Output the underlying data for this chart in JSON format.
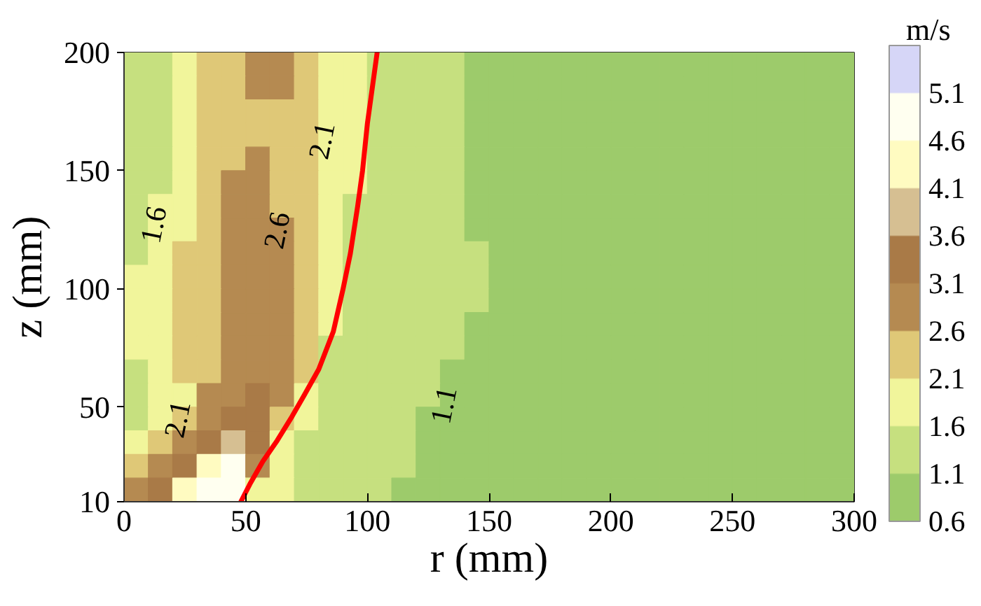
{
  "chart_data": {
    "type": "scatter",
    "marker": "square",
    "xlabel": "r (mm)",
    "ylabel": "z (mm)",
    "clabel": "m/s",
    "x": [
      5,
      15,
      25,
      35,
      45,
      55,
      65,
      75,
      85,
      95,
      105,
      115,
      125,
      135,
      145,
      155,
      165,
      175,
      185,
      195,
      205,
      215,
      225,
      235,
      245,
      255,
      265,
      275,
      285,
      295
    ],
    "series": [
      {
        "values": [
          195,
          195,
          195,
          195,
          195,
          195,
          195,
          195,
          195,
          195,
          195,
          195,
          195,
          195,
          195,
          195,
          195,
          195,
          195,
          195,
          195,
          195,
          195,
          195,
          195,
          195,
          195,
          195,
          195,
          195
        ],
        "cvalues": [
          1.35,
          1.35,
          1.85,
          2.35,
          2.35,
          2.85,
          2.85,
          2.35,
          1.85,
          1.85,
          1.35,
          1.35,
          1.35,
          1.35,
          0.85,
          0.85,
          0.85,
          0.85,
          0.85,
          0.85,
          0.85,
          0.85,
          0.85,
          0.85,
          0.85,
          0.85,
          0.85,
          0.85,
          0.85,
          0.85
        ],
        "colors": [
          "#c6e07f",
          "#c6e07f",
          "#f1f59b",
          "#dfc877",
          "#dfc877",
          "#b58a51",
          "#b58a51",
          "#dfc877",
          "#f1f59b",
          "#f1f59b",
          "#c6e07f",
          "#c6e07f",
          "#c6e07f",
          "#c6e07f",
          "#9dcb6b",
          "#9dcb6b",
          "#9dcb6b",
          "#9dcb6b",
          "#9dcb6b",
          "#9dcb6b",
          "#9dcb6b",
          "#9dcb6b",
          "#9dcb6b",
          "#9dcb6b",
          "#9dcb6b",
          "#9dcb6b",
          "#9dcb6b",
          "#9dcb6b",
          "#9dcb6b",
          "#9dcb6b"
        ]
      },
      {
        "values": [
          185,
          185,
          185,
          185,
          185,
          185,
          185,
          185,
          185,
          185,
          185,
          185,
          185,
          185,
          185,
          185,
          185,
          185,
          185,
          185,
          185,
          185,
          185,
          185,
          185,
          185,
          185,
          185,
          185,
          185
        ],
        "cvalues": [
          1.35,
          1.35,
          1.85,
          2.35,
          2.35,
          2.85,
          2.85,
          2.35,
          1.85,
          1.85,
          1.35,
          1.35,
          1.35,
          1.35,
          0.85,
          0.85,
          0.85,
          0.85,
          0.85,
          0.85,
          0.85,
          0.85,
          0.85,
          0.85,
          0.85,
          0.85,
          0.85,
          0.85,
          0.85,
          0.85
        ],
        "colors": [
          "#c6e07f",
          "#c6e07f",
          "#f1f59b",
          "#dfc877",
          "#dfc877",
          "#b58a51",
          "#b58a51",
          "#dfc877",
          "#f1f59b",
          "#f1f59b",
          "#c6e07f",
          "#c6e07f",
          "#c6e07f",
          "#c6e07f",
          "#9dcb6b",
          "#9dcb6b",
          "#9dcb6b",
          "#9dcb6b",
          "#9dcb6b",
          "#9dcb6b",
          "#9dcb6b",
          "#9dcb6b",
          "#9dcb6b",
          "#9dcb6b",
          "#9dcb6b",
          "#9dcb6b",
          "#9dcb6b",
          "#9dcb6b",
          "#9dcb6b",
          "#9dcb6b"
        ]
      },
      {
        "values": [
          175,
          175,
          175,
          175,
          175,
          175,
          175,
          175,
          175,
          175,
          175,
          175,
          175,
          175,
          175,
          175,
          175,
          175,
          175,
          175,
          175,
          175,
          175,
          175,
          175,
          175,
          175,
          175,
          175,
          175
        ],
        "cvalues": [
          1.35,
          1.35,
          1.85,
          2.35,
          2.35,
          2.35,
          2.35,
          2.35,
          1.85,
          1.85,
          1.35,
          1.35,
          1.35,
          1.35,
          0.85,
          0.85,
          0.85,
          0.85,
          0.85,
          0.85,
          0.85,
          0.85,
          0.85,
          0.85,
          0.85,
          0.85,
          0.85,
          0.85,
          0.85,
          0.85
        ],
        "colors": [
          "#c6e07f",
          "#c6e07f",
          "#f1f59b",
          "#dfc877",
          "#dfc877",
          "#dfc877",
          "#dfc877",
          "#dfc877",
          "#f1f59b",
          "#f1f59b",
          "#c6e07f",
          "#c6e07f",
          "#c6e07f",
          "#c6e07f",
          "#9dcb6b",
          "#9dcb6b",
          "#9dcb6b",
          "#9dcb6b",
          "#9dcb6b",
          "#9dcb6b",
          "#9dcb6b",
          "#9dcb6b",
          "#9dcb6b",
          "#9dcb6b",
          "#9dcb6b",
          "#9dcb6b",
          "#9dcb6b",
          "#9dcb6b",
          "#9dcb6b",
          "#9dcb6b"
        ]
      },
      {
        "values": [
          165,
          165,
          165,
          165,
          165,
          165,
          165,
          165,
          165,
          165,
          165,
          165,
          165,
          165,
          165,
          165,
          165,
          165,
          165,
          165,
          165,
          165,
          165,
          165,
          165,
          165,
          165,
          165,
          165,
          165
        ],
        "cvalues": [
          1.35,
          1.35,
          1.85,
          2.35,
          2.35,
          2.35,
          2.35,
          2.35,
          1.85,
          1.85,
          1.35,
          1.35,
          1.35,
          1.35,
          0.85,
          0.85,
          0.85,
          0.85,
          0.85,
          0.85,
          0.85,
          0.85,
          0.85,
          0.85,
          0.85,
          0.85,
          0.85,
          0.85,
          0.85,
          0.85
        ],
        "colors": [
          "#c6e07f",
          "#c6e07f",
          "#f1f59b",
          "#dfc877",
          "#dfc877",
          "#dfc877",
          "#dfc877",
          "#dfc877",
          "#f1f59b",
          "#f1f59b",
          "#c6e07f",
          "#c6e07f",
          "#c6e07f",
          "#c6e07f",
          "#9dcb6b",
          "#9dcb6b",
          "#9dcb6b",
          "#9dcb6b",
          "#9dcb6b",
          "#9dcb6b",
          "#9dcb6b",
          "#9dcb6b",
          "#9dcb6b",
          "#9dcb6b",
          "#9dcb6b",
          "#9dcb6b",
          "#9dcb6b",
          "#9dcb6b",
          "#9dcb6b",
          "#9dcb6b"
        ]
      },
      {
        "values": [
          155,
          155,
          155,
          155,
          155,
          155,
          155,
          155,
          155,
          155,
          155,
          155,
          155,
          155,
          155,
          155,
          155,
          155,
          155,
          155,
          155,
          155,
          155,
          155,
          155,
          155,
          155,
          155,
          155,
          155
        ],
        "cvalues": [
          1.35,
          1.35,
          1.85,
          2.35,
          2.35,
          2.85,
          2.35,
          2.35,
          1.85,
          1.85,
          1.35,
          1.35,
          1.35,
          1.35,
          0.85,
          0.85,
          0.85,
          0.85,
          0.85,
          0.85,
          0.85,
          0.85,
          0.85,
          0.85,
          0.85,
          0.85,
          0.85,
          0.85,
          0.85,
          0.85
        ],
        "colors": [
          "#c6e07f",
          "#c6e07f",
          "#f1f59b",
          "#dfc877",
          "#dfc877",
          "#b58a51",
          "#dfc877",
          "#dfc877",
          "#f1f59b",
          "#f1f59b",
          "#c6e07f",
          "#c6e07f",
          "#c6e07f",
          "#c6e07f",
          "#9dcb6b",
          "#9dcb6b",
          "#9dcb6b",
          "#9dcb6b",
          "#9dcb6b",
          "#9dcb6b",
          "#9dcb6b",
          "#9dcb6b",
          "#9dcb6b",
          "#9dcb6b",
          "#9dcb6b",
          "#9dcb6b",
          "#9dcb6b",
          "#9dcb6b",
          "#9dcb6b",
          "#9dcb6b"
        ]
      },
      {
        "values": [
          145,
          145,
          145,
          145,
          145,
          145,
          145,
          145,
          145,
          145,
          145,
          145,
          145,
          145,
          145,
          145,
          145,
          145,
          145,
          145,
          145,
          145,
          145,
          145,
          145,
          145,
          145,
          145,
          145,
          145
        ],
        "cvalues": [
          1.35,
          1.35,
          1.85,
          2.35,
          2.85,
          2.85,
          2.35,
          2.35,
          1.85,
          1.85,
          1.35,
          1.35,
          1.35,
          1.35,
          0.85,
          0.85,
          0.85,
          0.85,
          0.85,
          0.85,
          0.85,
          0.85,
          0.85,
          0.85,
          0.85,
          0.85,
          0.85,
          0.85,
          0.85,
          0.85
        ],
        "colors": [
          "#c6e07f",
          "#c6e07f",
          "#f1f59b",
          "#dfc877",
          "#b58a51",
          "#b58a51",
          "#dfc877",
          "#dfc877",
          "#f1f59b",
          "#f1f59b",
          "#c6e07f",
          "#c6e07f",
          "#c6e07f",
          "#c6e07f",
          "#9dcb6b",
          "#9dcb6b",
          "#9dcb6b",
          "#9dcb6b",
          "#9dcb6b",
          "#9dcb6b",
          "#9dcb6b",
          "#9dcb6b",
          "#9dcb6b",
          "#9dcb6b",
          "#9dcb6b",
          "#9dcb6b",
          "#9dcb6b",
          "#9dcb6b",
          "#9dcb6b",
          "#9dcb6b"
        ]
      },
      {
        "values": [
          135,
          135,
          135,
          135,
          135,
          135,
          135,
          135,
          135,
          135,
          135,
          135,
          135,
          135,
          135,
          135,
          135,
          135,
          135,
          135,
          135,
          135,
          135,
          135,
          135,
          135,
          135,
          135,
          135,
          135
        ],
        "cvalues": [
          1.35,
          1.85,
          1.85,
          2.35,
          2.85,
          2.85,
          2.35,
          2.35,
          1.85,
          1.35,
          1.35,
          1.35,
          1.35,
          1.35,
          0.85,
          0.85,
          0.85,
          0.85,
          0.85,
          0.85,
          0.85,
          0.85,
          0.85,
          0.85,
          0.85,
          0.85,
          0.85,
          0.85,
          0.85,
          0.85
        ],
        "colors": [
          "#c6e07f",
          "#f1f59b",
          "#f1f59b",
          "#dfc877",
          "#b58a51",
          "#b58a51",
          "#dfc877",
          "#dfc877",
          "#f1f59b",
          "#c6e07f",
          "#c6e07f",
          "#c6e07f",
          "#c6e07f",
          "#c6e07f",
          "#9dcb6b",
          "#9dcb6b",
          "#9dcb6b",
          "#9dcb6b",
          "#9dcb6b",
          "#9dcb6b",
          "#9dcb6b",
          "#9dcb6b",
          "#9dcb6b",
          "#9dcb6b",
          "#9dcb6b",
          "#9dcb6b",
          "#9dcb6b",
          "#9dcb6b",
          "#9dcb6b",
          "#9dcb6b"
        ]
      },
      {
        "values": [
          125,
          125,
          125,
          125,
          125,
          125,
          125,
          125,
          125,
          125,
          125,
          125,
          125,
          125,
          125,
          125,
          125,
          125,
          125,
          125,
          125,
          125,
          125,
          125,
          125,
          125,
          125,
          125,
          125,
          125
        ],
        "cvalues": [
          1.35,
          1.85,
          1.85,
          2.35,
          2.85,
          2.85,
          2.85,
          2.35,
          1.85,
          1.35,
          1.35,
          1.35,
          1.35,
          1.35,
          0.85,
          0.85,
          0.85,
          0.85,
          0.85,
          0.85,
          0.85,
          0.85,
          0.85,
          0.85,
          0.85,
          0.85,
          0.85,
          0.85,
          0.85,
          0.85
        ],
        "colors": [
          "#c6e07f",
          "#f1f59b",
          "#f1f59b",
          "#dfc877",
          "#b58a51",
          "#b58a51",
          "#b58a51",
          "#dfc877",
          "#f1f59b",
          "#c6e07f",
          "#c6e07f",
          "#c6e07f",
          "#c6e07f",
          "#c6e07f",
          "#9dcb6b",
          "#9dcb6b",
          "#9dcb6b",
          "#9dcb6b",
          "#9dcb6b",
          "#9dcb6b",
          "#9dcb6b",
          "#9dcb6b",
          "#9dcb6b",
          "#9dcb6b",
          "#9dcb6b",
          "#9dcb6b",
          "#9dcb6b",
          "#9dcb6b",
          "#9dcb6b",
          "#9dcb6b"
        ]
      },
      {
        "values": [
          115,
          115,
          115,
          115,
          115,
          115,
          115,
          115,
          115,
          115,
          115,
          115,
          115,
          115,
          115,
          115,
          115,
          115,
          115,
          115,
          115,
          115,
          115,
          115,
          115,
          115,
          115,
          115,
          115,
          115
        ],
        "cvalues": [
          1.35,
          1.85,
          2.35,
          2.35,
          2.85,
          2.85,
          2.85,
          2.35,
          1.85,
          1.35,
          1.35,
          1.35,
          1.35,
          1.35,
          1.35,
          0.85,
          0.85,
          0.85,
          0.85,
          0.85,
          0.85,
          0.85,
          0.85,
          0.85,
          0.85,
          0.85,
          0.85,
          0.85,
          0.85,
          0.85
        ],
        "colors": [
          "#c6e07f",
          "#f1f59b",
          "#dfc877",
          "#dfc877",
          "#b58a51",
          "#b58a51",
          "#b58a51",
          "#dfc877",
          "#f1f59b",
          "#c6e07f",
          "#c6e07f",
          "#c6e07f",
          "#c6e07f",
          "#c6e07f",
          "#c6e07f",
          "#9dcb6b",
          "#9dcb6b",
          "#9dcb6b",
          "#9dcb6b",
          "#9dcb6b",
          "#9dcb6b",
          "#9dcb6b",
          "#9dcb6b",
          "#9dcb6b",
          "#9dcb6b",
          "#9dcb6b",
          "#9dcb6b",
          "#9dcb6b",
          "#9dcb6b",
          "#9dcb6b"
        ]
      },
      {
        "values": [
          105,
          105,
          105,
          105,
          105,
          105,
          105,
          105,
          105,
          105,
          105,
          105,
          105,
          105,
          105,
          105,
          105,
          105,
          105,
          105,
          105,
          105,
          105,
          105,
          105,
          105,
          105,
          105,
          105,
          105
        ],
        "cvalues": [
          1.85,
          1.85,
          2.35,
          2.35,
          2.85,
          2.85,
          2.85,
          2.35,
          1.85,
          1.35,
          1.35,
          1.35,
          1.35,
          1.35,
          1.35,
          0.85,
          0.85,
          0.85,
          0.85,
          0.85,
          0.85,
          0.85,
          0.85,
          0.85,
          0.85,
          0.85,
          0.85,
          0.85,
          0.85,
          0.85
        ],
        "colors": [
          "#f1f59b",
          "#f1f59b",
          "#dfc877",
          "#dfc877",
          "#b58a51",
          "#b58a51",
          "#b58a51",
          "#dfc877",
          "#f1f59b",
          "#c6e07f",
          "#c6e07f",
          "#c6e07f",
          "#c6e07f",
          "#c6e07f",
          "#c6e07f",
          "#9dcb6b",
          "#9dcb6b",
          "#9dcb6b",
          "#9dcb6b",
          "#9dcb6b",
          "#9dcb6b",
          "#9dcb6b",
          "#9dcb6b",
          "#9dcb6b",
          "#9dcb6b",
          "#9dcb6b",
          "#9dcb6b",
          "#9dcb6b",
          "#9dcb6b",
          "#9dcb6b"
        ]
      },
      {
        "values": [
          95,
          95,
          95,
          95,
          95,
          95,
          95,
          95,
          95,
          95,
          95,
          95,
          95,
          95,
          95,
          95,
          95,
          95,
          95,
          95,
          95,
          95,
          95,
          95,
          95,
          95,
          95,
          95,
          95,
          95
        ],
        "cvalues": [
          1.85,
          1.85,
          2.35,
          2.35,
          2.85,
          2.85,
          2.85,
          2.35,
          1.85,
          1.35,
          1.35,
          1.35,
          1.35,
          1.35,
          1.35,
          0.85,
          0.85,
          0.85,
          0.85,
          0.85,
          0.85,
          0.85,
          0.85,
          0.85,
          0.85,
          0.85,
          0.85,
          0.85,
          0.85,
          0.85
        ],
        "colors": [
          "#f1f59b",
          "#f1f59b",
          "#dfc877",
          "#dfc877",
          "#b58a51",
          "#b58a51",
          "#b58a51",
          "#dfc877",
          "#f1f59b",
          "#c6e07f",
          "#c6e07f",
          "#c6e07f",
          "#c6e07f",
          "#c6e07f",
          "#c6e07f",
          "#9dcb6b",
          "#9dcb6b",
          "#9dcb6b",
          "#9dcb6b",
          "#9dcb6b",
          "#9dcb6b",
          "#9dcb6b",
          "#9dcb6b",
          "#9dcb6b",
          "#9dcb6b",
          "#9dcb6b",
          "#9dcb6b",
          "#9dcb6b",
          "#9dcb6b",
          "#9dcb6b"
        ]
      },
      {
        "values": [
          85,
          85,
          85,
          85,
          85,
          85,
          85,
          85,
          85,
          85,
          85,
          85,
          85,
          85,
          85,
          85,
          85,
          85,
          85,
          85,
          85,
          85,
          85,
          85,
          85,
          85,
          85,
          85,
          85,
          85
        ],
        "cvalues": [
          1.85,
          1.85,
          2.35,
          2.35,
          2.85,
          2.85,
          2.85,
          2.35,
          1.85,
          1.35,
          1.35,
          1.35,
          1.35,
          1.35,
          0.85,
          0.85,
          0.85,
          0.85,
          0.85,
          0.85,
          0.85,
          0.85,
          0.85,
          0.85,
          0.85,
          0.85,
          0.85,
          0.85,
          0.85,
          0.85
        ],
        "colors": [
          "#f1f59b",
          "#f1f59b",
          "#dfc877",
          "#dfc877",
          "#b58a51",
          "#b58a51",
          "#b58a51",
          "#dfc877",
          "#f1f59b",
          "#c6e07f",
          "#c6e07f",
          "#c6e07f",
          "#c6e07f",
          "#c6e07f",
          "#9dcb6b",
          "#9dcb6b",
          "#9dcb6b",
          "#9dcb6b",
          "#9dcb6b",
          "#9dcb6b",
          "#9dcb6b",
          "#9dcb6b",
          "#9dcb6b",
          "#9dcb6b",
          "#9dcb6b",
          "#9dcb6b",
          "#9dcb6b",
          "#9dcb6b",
          "#9dcb6b",
          "#9dcb6b"
        ]
      },
      {
        "values": [
          75,
          75,
          75,
          75,
          75,
          75,
          75,
          75,
          75,
          75,
          75,
          75,
          75,
          75,
          75,
          75,
          75,
          75,
          75,
          75,
          75,
          75,
          75,
          75,
          75,
          75,
          75,
          75,
          75,
          75
        ],
        "cvalues": [
          1.85,
          1.85,
          2.35,
          2.35,
          2.85,
          2.85,
          2.85,
          2.35,
          1.35,
          1.35,
          1.35,
          1.35,
          1.35,
          1.35,
          0.85,
          0.85,
          0.85,
          0.85,
          0.85,
          0.85,
          0.85,
          0.85,
          0.85,
          0.85,
          0.85,
          0.85,
          0.85,
          0.85,
          0.85,
          0.85
        ],
        "colors": [
          "#f1f59b",
          "#f1f59b",
          "#dfc877",
          "#dfc877",
          "#b58a51",
          "#b58a51",
          "#b58a51",
          "#dfc877",
          "#c6e07f",
          "#c6e07f",
          "#c6e07f",
          "#c6e07f",
          "#c6e07f",
          "#c6e07f",
          "#9dcb6b",
          "#9dcb6b",
          "#9dcb6b",
          "#9dcb6b",
          "#9dcb6b",
          "#9dcb6b",
          "#9dcb6b",
          "#9dcb6b",
          "#9dcb6b",
          "#9dcb6b",
          "#9dcb6b",
          "#9dcb6b",
          "#9dcb6b",
          "#9dcb6b",
          "#9dcb6b",
          "#9dcb6b"
        ]
      },
      {
        "values": [
          65,
          65,
          65,
          65,
          65,
          65,
          65,
          65,
          65,
          65,
          65,
          65,
          65,
          65,
          65,
          65,
          65,
          65,
          65,
          65,
          65,
          65,
          65,
          65,
          65,
          65,
          65,
          65,
          65,
          65
        ],
        "cvalues": [
          1.35,
          1.85,
          2.35,
          2.35,
          2.85,
          2.85,
          2.85,
          2.35,
          1.35,
          1.35,
          1.35,
          1.35,
          1.35,
          0.85,
          0.85,
          0.85,
          0.85,
          0.85,
          0.85,
          0.85,
          0.85,
          0.85,
          0.85,
          0.85,
          0.85,
          0.85,
          0.85,
          0.85,
          0.85,
          0.85
        ],
        "colors": [
          "#c6e07f",
          "#f1f59b",
          "#dfc877",
          "#dfc877",
          "#b58a51",
          "#b58a51",
          "#b58a51",
          "#dfc877",
          "#c6e07f",
          "#c6e07f",
          "#c6e07f",
          "#c6e07f",
          "#c6e07f",
          "#9dcb6b",
          "#9dcb6b",
          "#9dcb6b",
          "#9dcb6b",
          "#9dcb6b",
          "#9dcb6b",
          "#9dcb6b",
          "#9dcb6b",
          "#9dcb6b",
          "#9dcb6b",
          "#9dcb6b",
          "#9dcb6b",
          "#9dcb6b",
          "#9dcb6b",
          "#9dcb6b",
          "#9dcb6b",
          "#9dcb6b"
        ]
      },
      {
        "values": [
          55,
          55,
          55,
          55,
          55,
          55,
          55,
          55,
          55,
          55,
          55,
          55,
          55,
          55,
          55,
          55,
          55,
          55,
          55,
          55,
          55,
          55,
          55,
          55,
          55,
          55,
          55,
          55,
          55,
          55
        ],
        "cvalues": [
          1.35,
          1.85,
          1.85,
          2.85,
          2.85,
          3.35,
          2.85,
          1.85,
          1.35,
          1.35,
          1.35,
          1.35,
          1.35,
          0.85,
          0.85,
          0.85,
          0.85,
          0.85,
          0.85,
          0.85,
          0.85,
          0.85,
          0.85,
          0.85,
          0.85,
          0.85,
          0.85,
          0.85,
          0.85,
          0.85
        ],
        "colors": [
          "#c6e07f",
          "#f1f59b",
          "#f1f59b",
          "#b58a51",
          "#b58a51",
          "#a97a47",
          "#b58a51",
          "#f1f59b",
          "#c6e07f",
          "#c6e07f",
          "#c6e07f",
          "#c6e07f",
          "#c6e07f",
          "#9dcb6b",
          "#9dcb6b",
          "#9dcb6b",
          "#9dcb6b",
          "#9dcb6b",
          "#9dcb6b",
          "#9dcb6b",
          "#9dcb6b",
          "#9dcb6b",
          "#9dcb6b",
          "#9dcb6b",
          "#9dcb6b",
          "#9dcb6b",
          "#9dcb6b",
          "#9dcb6b",
          "#9dcb6b",
          "#9dcb6b"
        ]
      },
      {
        "values": [
          45,
          45,
          45,
          45,
          45,
          45,
          45,
          45,
          45,
          45,
          45,
          45,
          45,
          45,
          45,
          45,
          45,
          45,
          45,
          45,
          45,
          45,
          45,
          45,
          45,
          45,
          45,
          45,
          45,
          45
        ],
        "cvalues": [
          1.35,
          1.85,
          2.35,
          2.85,
          3.35,
          3.35,
          2.35,
          1.85,
          1.35,
          1.35,
          1.35,
          1.35,
          0.85,
          0.85,
          0.85,
          0.85,
          0.85,
          0.85,
          0.85,
          0.85,
          0.85,
          0.85,
          0.85,
          0.85,
          0.85,
          0.85,
          0.85,
          0.85,
          0.85,
          0.85
        ],
        "colors": [
          "#c6e07f",
          "#f1f59b",
          "#dfc877",
          "#b58a51",
          "#a97a47",
          "#a97a47",
          "#dfc877",
          "#f1f59b",
          "#c6e07f",
          "#c6e07f",
          "#c6e07f",
          "#c6e07f",
          "#9dcb6b",
          "#9dcb6b",
          "#9dcb6b",
          "#9dcb6b",
          "#9dcb6b",
          "#9dcb6b",
          "#9dcb6b",
          "#9dcb6b",
          "#9dcb6b",
          "#9dcb6b",
          "#9dcb6b",
          "#9dcb6b",
          "#9dcb6b",
          "#9dcb6b",
          "#9dcb6b",
          "#9dcb6b",
          "#9dcb6b",
          "#9dcb6b"
        ]
      },
      {
        "values": [
          35,
          35,
          35,
          35,
          35,
          35,
          35,
          35,
          35,
          35,
          35,
          35,
          35,
          35,
          35,
          35,
          35,
          35,
          35,
          35,
          35,
          35,
          35,
          35,
          35,
          35,
          35,
          35,
          35,
          35
        ],
        "cvalues": [
          1.85,
          2.35,
          2.85,
          3.35,
          3.85,
          3.35,
          1.85,
          1.35,
          1.35,
          1.35,
          1.35,
          1.35,
          0.85,
          0.85,
          0.85,
          0.85,
          0.85,
          0.85,
          0.85,
          0.85,
          0.85,
          0.85,
          0.85,
          0.85,
          0.85,
          0.85,
          0.85,
          0.85,
          0.85,
          0.85
        ],
        "colors": [
          "#f1f59b",
          "#dfc877",
          "#b58a51",
          "#a97a47",
          "#d6bf92",
          "#a97a47",
          "#f1f59b",
          "#c6e07f",
          "#c6e07f",
          "#c6e07f",
          "#c6e07f",
          "#c6e07f",
          "#9dcb6b",
          "#9dcb6b",
          "#9dcb6b",
          "#9dcb6b",
          "#9dcb6b",
          "#9dcb6b",
          "#9dcb6b",
          "#9dcb6b",
          "#9dcb6b",
          "#9dcb6b",
          "#9dcb6b",
          "#9dcb6b",
          "#9dcb6b",
          "#9dcb6b",
          "#9dcb6b",
          "#9dcb6b",
          "#9dcb6b",
          "#9dcb6b"
        ]
      },
      {
        "values": [
          25,
          25,
          25,
          25,
          25,
          25,
          25,
          25,
          25,
          25,
          25,
          25,
          25,
          25,
          25,
          25,
          25,
          25,
          25,
          25,
          25,
          25,
          25,
          25,
          25,
          25,
          25,
          25,
          25,
          25
        ],
        "cvalues": [
          2.35,
          2.85,
          3.35,
          4.35,
          4.85,
          2.85,
          1.85,
          1.35,
          1.35,
          1.35,
          1.35,
          1.35,
          0.85,
          0.85,
          0.85,
          0.85,
          0.85,
          0.85,
          0.85,
          0.85,
          0.85,
          0.85,
          0.85,
          0.85,
          0.85,
          0.85,
          0.85,
          0.85,
          0.85,
          0.85
        ],
        "colors": [
          "#dfc877",
          "#b58a51",
          "#a97a47",
          "#fffbc1",
          "#fffff0",
          "#b58a51",
          "#f1f59b",
          "#c6e07f",
          "#c6e07f",
          "#c6e07f",
          "#c6e07f",
          "#c6e07f",
          "#9dcb6b",
          "#9dcb6b",
          "#9dcb6b",
          "#9dcb6b",
          "#9dcb6b",
          "#9dcb6b",
          "#9dcb6b",
          "#9dcb6b",
          "#9dcb6b",
          "#9dcb6b",
          "#9dcb6b",
          "#9dcb6b",
          "#9dcb6b",
          "#9dcb6b",
          "#9dcb6b",
          "#9dcb6b",
          "#9dcb6b",
          "#9dcb6b"
        ]
      },
      {
        "values": [
          15,
          15,
          15,
          15,
          15,
          15,
          15,
          15,
          15,
          15,
          15,
          15,
          15,
          15,
          15,
          15,
          15,
          15,
          15,
          15,
          15,
          15,
          15,
          15,
          15,
          15,
          15,
          15,
          15,
          15
        ],
        "cvalues": [
          2.85,
          3.35,
          4.35,
          4.85,
          4.85,
          1.85,
          1.85,
          1.35,
          1.35,
          1.35,
          1.35,
          0.85,
          0.85,
          0.85,
          0.85,
          0.85,
          0.85,
          0.85,
          0.85,
          0.85,
          0.85,
          0.85,
          0.85,
          0.85,
          0.85,
          0.85,
          0.85,
          0.85,
          0.85,
          0.85
        ],
        "colors": [
          "#b58a51",
          "#a97a47",
          "#fffbc1",
          "#fffff0",
          "#fffff0",
          "#f1f59b",
          "#f1f59b",
          "#c6e07f",
          "#c6e07f",
          "#c6e07f",
          "#c6e07f",
          "#9dcb6b",
          "#9dcb6b",
          "#9dcb6b",
          "#9dcb6b",
          "#9dcb6b",
          "#9dcb6b",
          "#9dcb6b",
          "#9dcb6b",
          "#9dcb6b",
          "#9dcb6b",
          "#9dcb6b",
          "#9dcb6b",
          "#9dcb6b",
          "#9dcb6b",
          "#9dcb6b",
          "#9dcb6b",
          "#9dcb6b",
          "#9dcb6b",
          "#9dcb6b"
        ]
      },
      {
        "type": "line",
        "marker": "none",
        "color": "#ff0000",
        "x": [
          48,
          52,
          57,
          63,
          69,
          74,
          80,
          86,
          90,
          93,
          96,
          98,
          100,
          102,
          104
        ],
        "values": [
          10,
          18,
          27,
          36,
          46,
          55,
          66,
          82,
          100,
          115,
          135,
          150,
          170,
          185,
          200
        ]
      }
    ],
    "colors": [
      "#9dcb6b",
      "#c6e07f",
      "#f1f59b",
      "#dfc877",
      "#b58a51",
      "#a97a47",
      "#d6bf92",
      "#fffbc1",
      "#fffff0",
      "#d6d6f7"
    ],
    "clim": [
      0.6,
      5.6
    ],
    "cticks": [
      0.6,
      1.1,
      1.6,
      2.1,
      2.6,
      3.1,
      3.6,
      4.1,
      4.6,
      5.1
    ],
    "xlim": [
      0,
      300
    ],
    "xticks": [
      0,
      50,
      100,
      150,
      200,
      250,
      300
    ],
    "ylim": [
      10,
      200
    ],
    "yticks": [
      10,
      50,
      100,
      150,
      200
    ],
    "annotations": [
      "1.6",
      "2.6",
      "2.1",
      "2.1",
      "1.1"
    ]
  }
}
